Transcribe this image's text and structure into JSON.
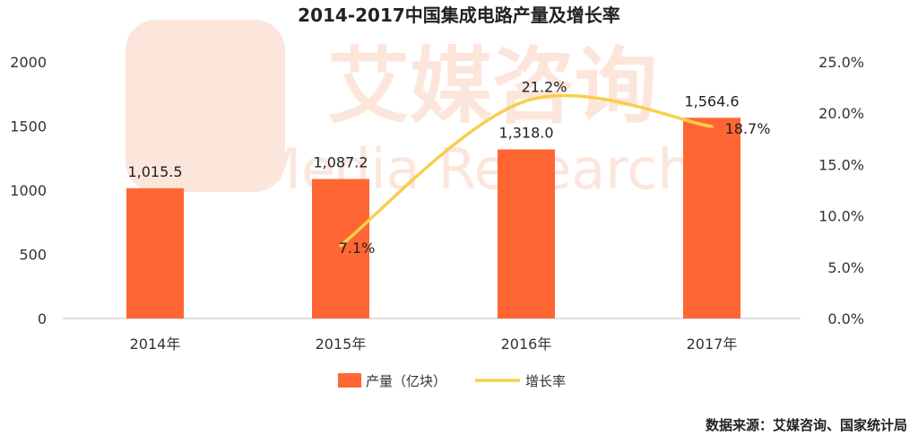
{
  "chart_data": {
    "type": "bar",
    "title": "2014-2017中国集成电路产量及增长率",
    "categories": [
      "2014年",
      "2015年",
      "2016年",
      "2017年"
    ],
    "series": [
      {
        "name": "产量（亿块）",
        "type": "bar",
        "axis": "left",
        "values": [
          1015.5,
          1087.2,
          1318.0,
          1564.6
        ],
        "labels": [
          "1,015.5",
          "1,087.2",
          "1,318.0",
          "1,564.6"
        ],
        "color": "#FF6633"
      },
      {
        "name": "增长率",
        "type": "line",
        "axis": "right",
        "values": [
          null,
          7.1,
          21.2,
          18.7
        ],
        "labels": [
          null,
          "7.1%",
          "21.2%",
          "18.7%"
        ],
        "color": "#F7CF4B"
      }
    ],
    "y_left": {
      "min": 0,
      "max": 2000,
      "ticks": [
        0,
        500,
        1000,
        1500,
        2000
      ]
    },
    "y_right": {
      "min": 0,
      "max": 25,
      "ticks": [
        0,
        5,
        10,
        15,
        20,
        25
      ],
      "tick_labels": [
        "0.0%",
        "5.0%",
        "10.0%",
        "15.0%",
        "20.0%",
        "25.0%"
      ]
    },
    "grid": false,
    "legend_position": "bottom"
  },
  "watermark": {
    "chinese": "艾媒咨询",
    "english": "iiMedia Research",
    "color": "#FCE6DB"
  },
  "source": "数据来源：艾媒咨询、国家统计局"
}
